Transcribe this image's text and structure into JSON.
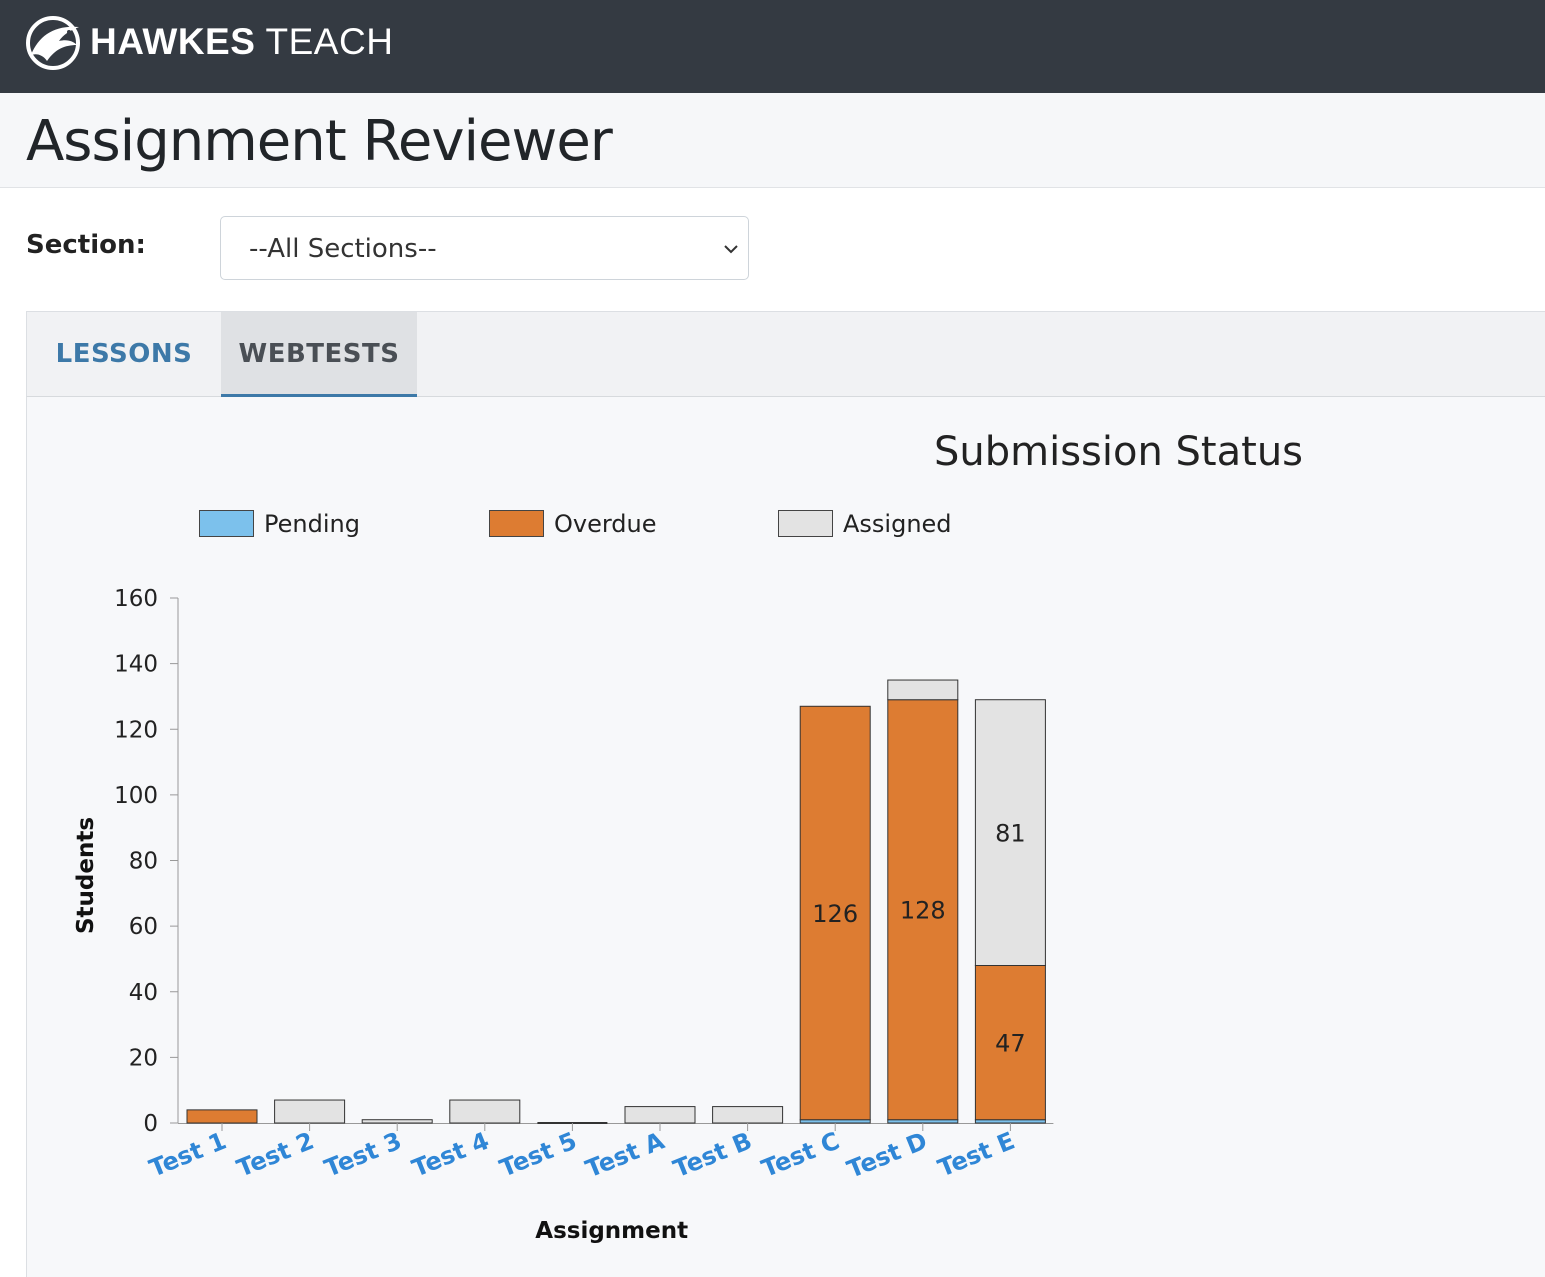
{
  "header": {
    "brand_bold": "HAWKES",
    "brand_light": "TEACH",
    "logo_icon": "hawk-logo-icon"
  },
  "page": {
    "title": "Assignment Reviewer"
  },
  "filters": {
    "section_label": "Section:",
    "section_value": "--All Sections--"
  },
  "tabs": [
    {
      "label": "LESSONS",
      "active": false
    },
    {
      "label": "WEBTESTS",
      "active": true
    }
  ],
  "colors": {
    "pending": "#7cc1ec",
    "overdue": "#dd7c32",
    "assigned": "#e3e3e3",
    "tick_link": "#2f86d6"
  },
  "chart_data": {
    "type": "bar",
    "stacked": true,
    "title": "Submission Status",
    "xlabel": "Assignment",
    "ylabel": "Students",
    "ylim": [
      0,
      160
    ],
    "yticks": [
      0,
      20,
      40,
      60,
      80,
      100,
      120,
      140,
      160
    ],
    "legend_position": "top",
    "categories": [
      "Test 1",
      "Test 2",
      "Test 3",
      "Test 4",
      "Test 5",
      "Test A",
      "Test B",
      "Test C",
      "Test D",
      "Test E"
    ],
    "series": [
      {
        "name": "Pending",
        "values": [
          0,
          0,
          0,
          0,
          0,
          0,
          0,
          1,
          1,
          1
        ]
      },
      {
        "name": "Overdue",
        "values": [
          4,
          0,
          0,
          0,
          0,
          0,
          0,
          126,
          128,
          47
        ]
      },
      {
        "name": "Assigned",
        "values": [
          0,
          7,
          1,
          7,
          0,
          5,
          5,
          0,
          6,
          81
        ]
      }
    ],
    "data_labels": [
      {
        "category": "Test C",
        "series": "Overdue",
        "text": "126"
      },
      {
        "category": "Test D",
        "series": "Overdue",
        "text": "128"
      },
      {
        "category": "Test E",
        "series": "Overdue",
        "text": "47"
      },
      {
        "category": "Test E",
        "series": "Assigned",
        "text": "81"
      }
    ]
  }
}
